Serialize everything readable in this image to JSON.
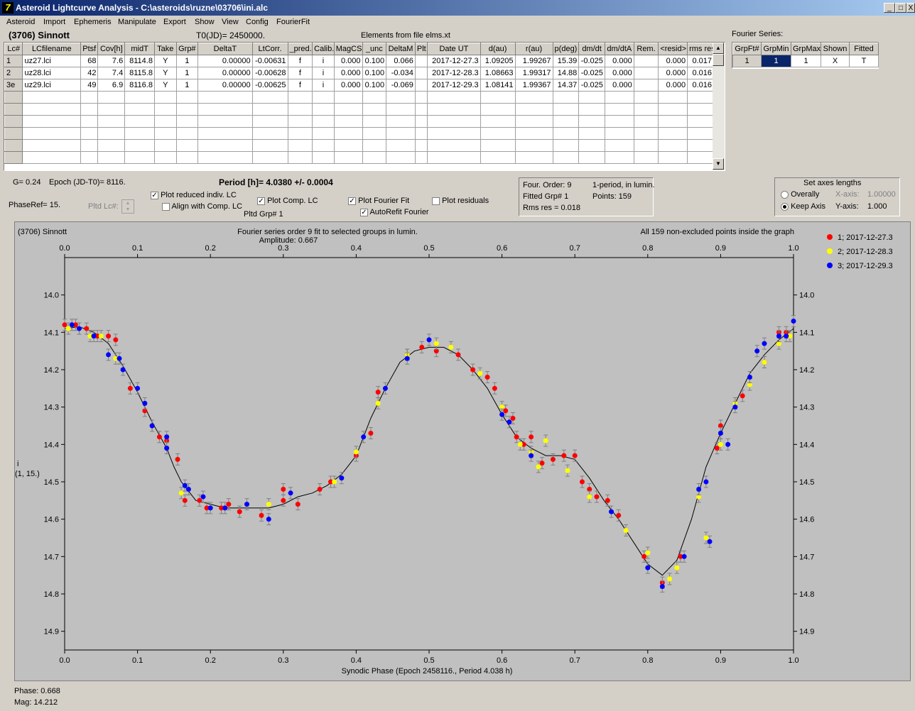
{
  "window": {
    "title": "Asteroid Lightcurve Analysis - C:\\asteroids\\ruzne\\03706\\ini.alc",
    "icon_name": "app-icon",
    "controls": [
      "_",
      "□",
      "X"
    ]
  },
  "menu": [
    "Asteroid",
    "Import",
    "Ephemeris",
    "Manipulate",
    "Export",
    "Show",
    "View",
    "Config",
    "FourierFit"
  ],
  "header": {
    "asteroid": "(3706) Sinnott",
    "t0": "T0(JD)= 2450000.",
    "elements": "Elements from file elms.xt"
  },
  "lc_table": {
    "columns": [
      "Lc#",
      "LCfilename",
      "Ptsf",
      "Cov[h]",
      "midT",
      "Take",
      "Grp#",
      "DeltaT",
      "LtCorr.",
      "_pred.",
      "Calib.",
      "MagCS",
      "_unc",
      "DeltaM",
      "Plt",
      "Date UT",
      "d(au)",
      "r(au)",
      "p(deg)",
      "dm/dt",
      "dm/dtA",
      "Rem.",
      "<resid>",
      "rms res"
    ],
    "rows": [
      [
        "1",
        "uz27.lci",
        "68",
        "7.6",
        "8114.8",
        "Y",
        "1",
        "0.00000",
        "-0.00631",
        "f",
        "i",
        "0.000",
        "0.100",
        "0.066",
        "",
        "2017-12-27.3",
        "1.09205",
        "1.99267",
        "15.39",
        "-0.025",
        "0.000",
        "",
        "0.000",
        "0.017"
      ],
      [
        "2",
        "uz28.lci",
        "42",
        "7.4",
        "8115.8",
        "Y",
        "1",
        "0.00000",
        "-0.00628",
        "f",
        "i",
        "0.000",
        "0.100",
        "-0.034",
        "",
        "2017-12-28.3",
        "1.08663",
        "1.99317",
        "14.88",
        "-0.025",
        "0.000",
        "",
        "0.000",
        "0.016"
      ],
      [
        "3e",
        "uz29.lci",
        "49",
        "6.9",
        "8116.8",
        "Y",
        "1",
        "0.00000",
        "-0.00625",
        "f",
        "i",
        "0.000",
        "0.100",
        "-0.069",
        "",
        "2017-12-29.3",
        "1.08141",
        "1.99367",
        "14.37",
        "-0.025",
        "0.000",
        "",
        "0.000",
        "0.016"
      ]
    ]
  },
  "fourier_series": {
    "label": "Fourier Series:",
    "columns": [
      "GrpFt#",
      "GrpMin",
      "GrpMax",
      "Shown",
      "Fitted"
    ],
    "row": [
      "1",
      "1",
      "1",
      "X",
      "T"
    ]
  },
  "controls": {
    "g_value": "G= 0.24",
    "epoch": "Epoch (JD-T0)= 8116.",
    "period": "Period [h]= 4.0380 +/- 0.0004",
    "phaseref": "PhaseRef= 15.",
    "pltd_lc": "Pltd Lc#:",
    "pltd_grp": "Pltd Grp#  1",
    "plot_reduced": "Plot reduced indiv. LC",
    "align_comp": "Align with Comp. LC",
    "plot_comp": "Plot Comp. LC",
    "plot_fourier": "Plot Fourier Fit",
    "autorefit": "AutoRefit Fourier",
    "plot_residuals": "Plot residuals",
    "checked": {
      "plot_reduced": true,
      "align_comp": false,
      "plot_comp": true,
      "plot_fourier": true,
      "autorefit": true,
      "plot_residuals": false
    }
  },
  "fit_info": {
    "order": "Four. Order:  9",
    "mode": "1-period, in lumin.",
    "fitted_grp": "Fitted Grp# 1",
    "points": "Points: 159",
    "rms": "Rms res      = 0.018"
  },
  "axes_box": {
    "title": "Set axes lengths",
    "overally": "Overally",
    "keep_axis": "Keep Axis",
    "xaxis_label": "X-axis:",
    "xaxis_value": "1.00000",
    "yaxis_label": "Y-axis:",
    "yaxis_value": "1.000",
    "selected": "Keep Axis"
  },
  "plot": {
    "top_left": "(3706) Sinnott",
    "fourier_title": "Fourier series order 9 fit to selected groups in lumin.",
    "amplitude": "Amplitude: 0.667",
    "all_points": "All 159 non-excluded points inside the graph",
    "ylabel_line1": "i",
    "ylabel_line2": "(1, 15.)",
    "xlabel": "Synodic Phase (Epoch 2458116., Period 4.038 h)"
  },
  "chart_data": {
    "type": "scatter",
    "xlim": [
      0.0,
      1.0
    ],
    "ylim": [
      14.95,
      13.9
    ],
    "x_ticks": [
      "0.0",
      "0.1",
      "0.2",
      "0.3",
      "0.4",
      "0.5",
      "0.6",
      "0.7",
      "0.8",
      "0.9",
      "1.0"
    ],
    "y_ticks": [
      "14.0",
      "14.1",
      "14.2",
      "14.3",
      "14.4",
      "14.5",
      "14.6",
      "14.7",
      "14.8",
      "14.9"
    ],
    "y_reversed": true,
    "grid": false,
    "legend_placement": "right",
    "series": [
      {
        "name": "1; 2017-12-27.3",
        "color": "#ff0000",
        "points": [
          [
            0.0,
            14.08
          ],
          [
            0.015,
            14.08
          ],
          [
            0.03,
            14.09
          ],
          [
            0.045,
            14.11
          ],
          [
            0.06,
            14.11
          ],
          [
            0.07,
            14.12
          ],
          [
            0.09,
            14.25
          ],
          [
            0.11,
            14.31
          ],
          [
            0.12,
            14.35
          ],
          [
            0.13,
            14.38
          ],
          [
            0.14,
            14.39
          ],
          [
            0.155,
            14.44
          ],
          [
            0.165,
            14.55
          ],
          [
            0.185,
            14.55
          ],
          [
            0.195,
            14.57
          ],
          [
            0.215,
            14.57
          ],
          [
            0.225,
            14.56
          ],
          [
            0.24,
            14.58
          ],
          [
            0.27,
            14.59
          ],
          [
            0.3,
            14.52
          ],
          [
            0.3,
            14.55
          ],
          [
            0.32,
            14.56
          ],
          [
            0.35,
            14.52
          ],
          [
            0.365,
            14.5
          ],
          [
            0.4,
            14.43
          ],
          [
            0.42,
            14.37
          ],
          [
            0.43,
            14.26
          ],
          [
            0.47,
            14.16
          ],
          [
            0.49,
            14.14
          ],
          [
            0.51,
            14.15
          ],
          [
            0.54,
            14.16
          ],
          [
            0.56,
            14.2
          ],
          [
            0.58,
            14.22
          ],
          [
            0.59,
            14.25
          ],
          [
            0.605,
            14.31
          ],
          [
            0.615,
            14.33
          ],
          [
            0.62,
            14.38
          ],
          [
            0.63,
            14.4
          ],
          [
            0.64,
            14.38
          ],
          [
            0.655,
            14.45
          ],
          [
            0.67,
            14.44
          ],
          [
            0.685,
            14.43
          ],
          [
            0.7,
            14.43
          ],
          [
            0.71,
            14.5
          ],
          [
            0.72,
            14.52
          ],
          [
            0.73,
            14.54
          ],
          [
            0.745,
            14.55
          ],
          [
            0.76,
            14.59
          ],
          [
            0.795,
            14.7
          ],
          [
            0.82,
            14.77
          ],
          [
            0.845,
            14.7
          ],
          [
            0.895,
            14.41
          ],
          [
            0.9,
            14.35
          ],
          [
            0.93,
            14.27
          ],
          [
            0.96,
            14.18
          ],
          [
            0.98,
            14.1
          ],
          [
            0.99,
            14.1
          ]
        ]
      },
      {
        "name": "2; 2017-12-28.3",
        "color": "#ffff00",
        "points": [
          [
            0.005,
            14.09
          ],
          [
            0.02,
            14.09
          ],
          [
            0.035,
            14.11
          ],
          [
            0.05,
            14.11
          ],
          [
            0.07,
            14.17
          ],
          [
            0.16,
            14.53
          ],
          [
            0.28,
            14.56
          ],
          [
            0.37,
            14.5
          ],
          [
            0.4,
            14.42
          ],
          [
            0.43,
            14.29
          ],
          [
            0.47,
            14.16
          ],
          [
            0.51,
            14.13
          ],
          [
            0.53,
            14.14
          ],
          [
            0.57,
            14.21
          ],
          [
            0.6,
            14.3
          ],
          [
            0.625,
            14.4
          ],
          [
            0.64,
            14.42
          ],
          [
            0.65,
            14.46
          ],
          [
            0.66,
            14.39
          ],
          [
            0.69,
            14.47
          ],
          [
            0.72,
            14.54
          ],
          [
            0.77,
            14.63
          ],
          [
            0.8,
            14.69
          ],
          [
            0.83,
            14.76
          ],
          [
            0.84,
            14.73
          ],
          [
            0.87,
            14.54
          ],
          [
            0.88,
            14.65
          ],
          [
            0.9,
            14.4
          ],
          [
            0.92,
            14.29
          ],
          [
            0.94,
            14.24
          ],
          [
            0.96,
            14.18
          ],
          [
            0.98,
            14.13
          ],
          [
            0.995,
            14.11
          ]
        ]
      },
      {
        "name": "3; 2017-12-29.3",
        "color": "#0000ff",
        "points": [
          [
            0.01,
            14.08
          ],
          [
            0.02,
            14.09
          ],
          [
            0.04,
            14.11
          ],
          [
            0.06,
            14.16
          ],
          [
            0.075,
            14.17
          ],
          [
            0.08,
            14.2
          ],
          [
            0.1,
            14.25
          ],
          [
            0.11,
            14.29
          ],
          [
            0.12,
            14.35
          ],
          [
            0.14,
            14.38
          ],
          [
            0.14,
            14.41
          ],
          [
            0.165,
            14.51
          ],
          [
            0.17,
            14.52
          ],
          [
            0.19,
            14.54
          ],
          [
            0.2,
            14.57
          ],
          [
            0.22,
            14.57
          ],
          [
            0.25,
            14.56
          ],
          [
            0.28,
            14.6
          ],
          [
            0.31,
            14.53
          ],
          [
            0.38,
            14.49
          ],
          [
            0.41,
            14.38
          ],
          [
            0.44,
            14.25
          ],
          [
            0.47,
            14.17
          ],
          [
            0.5,
            14.12
          ],
          [
            0.6,
            14.32
          ],
          [
            0.61,
            14.34
          ],
          [
            0.64,
            14.43
          ],
          [
            0.75,
            14.58
          ],
          [
            0.8,
            14.73
          ],
          [
            0.82,
            14.78
          ],
          [
            0.85,
            14.7
          ],
          [
            0.87,
            14.52
          ],
          [
            0.88,
            14.5
          ],
          [
            0.885,
            14.66
          ],
          [
            0.9,
            14.37
          ],
          [
            0.91,
            14.4
          ],
          [
            0.92,
            14.3
          ],
          [
            0.94,
            14.22
          ],
          [
            0.95,
            14.15
          ],
          [
            0.96,
            14.13
          ],
          [
            0.98,
            14.11
          ],
          [
            0.99,
            14.11
          ],
          [
            1.0,
            14.07
          ]
        ]
      }
    ],
    "fit_curve": [
      [
        0.0,
        14.09
      ],
      [
        0.02,
        14.085
      ],
      [
        0.04,
        14.1
      ],
      [
        0.06,
        14.13
      ],
      [
        0.08,
        14.19
      ],
      [
        0.1,
        14.26
      ],
      [
        0.12,
        14.34
      ],
      [
        0.14,
        14.41
      ],
      [
        0.15,
        14.46
      ],
      [
        0.16,
        14.5
      ],
      [
        0.18,
        14.55
      ],
      [
        0.2,
        14.56
      ],
      [
        0.22,
        14.57
      ],
      [
        0.24,
        14.57
      ],
      [
        0.26,
        14.57
      ],
      [
        0.28,
        14.57
      ],
      [
        0.3,
        14.56
      ],
      [
        0.32,
        14.54
      ],
      [
        0.34,
        14.53
      ],
      [
        0.36,
        14.51
      ],
      [
        0.38,
        14.48
      ],
      [
        0.4,
        14.43
      ],
      [
        0.41,
        14.38
      ],
      [
        0.42,
        14.33
      ],
      [
        0.44,
        14.25
      ],
      [
        0.46,
        14.18
      ],
      [
        0.48,
        14.15
      ],
      [
        0.5,
        14.14
      ],
      [
        0.52,
        14.14
      ],
      [
        0.54,
        14.16
      ],
      [
        0.56,
        14.2
      ],
      [
        0.58,
        14.25
      ],
      [
        0.6,
        14.32
      ],
      [
        0.62,
        14.38
      ],
      [
        0.64,
        14.41
      ],
      [
        0.66,
        14.43
      ],
      [
        0.68,
        14.43
      ],
      [
        0.7,
        14.44
      ],
      [
        0.72,
        14.49
      ],
      [
        0.74,
        14.55
      ],
      [
        0.76,
        14.6
      ],
      [
        0.78,
        14.66
      ],
      [
        0.8,
        14.72
      ],
      [
        0.82,
        14.75
      ],
      [
        0.84,
        14.71
      ],
      [
        0.86,
        14.6
      ],
      [
        0.88,
        14.46
      ],
      [
        0.9,
        14.37
      ],
      [
        0.92,
        14.29
      ],
      [
        0.94,
        14.21
      ],
      [
        0.96,
        14.16
      ],
      [
        0.98,
        14.12
      ],
      [
        1.0,
        14.09
      ]
    ]
  },
  "status": {
    "phase": "Phase:  0.668",
    "mag": "Mag:    14.212"
  }
}
